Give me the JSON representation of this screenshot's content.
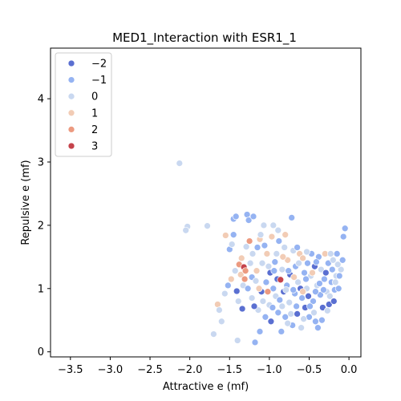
{
  "chart_data": {
    "type": "scatter",
    "title": "MED1_Interaction with ESR1_1",
    "xlabel": "Attractive e (mf)",
    "ylabel": "Repulsive e (mf)",
    "xlim": [
      -3.75,
      0.15
    ],
    "ylim": [
      -0.08,
      4.8
    ],
    "xticks": [
      -3.5,
      -3.0,
      -2.5,
      -2.0,
      -1.5,
      -1.0,
      -0.5,
      0.0
    ],
    "xtick_labels": [
      "−3.5",
      "−3.0",
      "−2.5",
      "−2.0",
      "−1.5",
      "−1.0",
      "−0.5",
      "0.0"
    ],
    "yticks": [
      0,
      1,
      2,
      3,
      4
    ],
    "ytick_labels": [
      "0",
      "1",
      "2",
      "3",
      "4"
    ],
    "grid": false,
    "legend_position": "top-left",
    "hue_colors": {
      "-2": "#5a6fd1",
      "-1": "#95b3f2",
      "0": "#c9d8f0",
      "1": "#f2ccb5",
      "2": "#ec9a80",
      "3": "#c5434b"
    },
    "legend": [
      {
        "label": "−2",
        "value": -2
      },
      {
        "label": "−1",
        "value": -1
      },
      {
        "label": "0",
        "value": 0
      },
      {
        "label": "1",
        "value": 1
      },
      {
        "label": "2",
        "value": 2
      },
      {
        "label": "3",
        "value": 3
      }
    ],
    "points": [
      {
        "x": -2.13,
        "y": 2.98,
        "hue": 0
      },
      {
        "x": -2.03,
        "y": 1.98,
        "hue": 0
      },
      {
        "x": -2.05,
        "y": 1.92,
        "hue": 0
      },
      {
        "x": -1.78,
        "y": 1.99,
        "hue": 0
      },
      {
        "x": -1.7,
        "y": 0.28,
        "hue": 0
      },
      {
        "x": -1.65,
        "y": 0.75,
        "hue": 1
      },
      {
        "x": -1.6,
        "y": 0.48,
        "hue": 0
      },
      {
        "x": -1.63,
        "y": 0.66,
        "hue": 0
      },
      {
        "x": -1.55,
        "y": 1.84,
        "hue": 1
      },
      {
        "x": -1.5,
        "y": 1.62,
        "hue": -1
      },
      {
        "x": -1.47,
        "y": 1.7,
        "hue": 0
      },
      {
        "x": -1.45,
        "y": 2.1,
        "hue": -1
      },
      {
        "x": -1.42,
        "y": 2.14,
        "hue": -1
      },
      {
        "x": -1.45,
        "y": 1.85,
        "hue": -1
      },
      {
        "x": -1.4,
        "y": 0.18,
        "hue": 0
      },
      {
        "x": -1.41,
        "y": 0.96,
        "hue": -2
      },
      {
        "x": -1.38,
        "y": 1.38,
        "hue": 2
      },
      {
        "x": -1.36,
        "y": 1.22,
        "hue": 1
      },
      {
        "x": -1.33,
        "y": 1.05,
        "hue": 0
      },
      {
        "x": -1.32,
        "y": 1.34,
        "hue": 3
      },
      {
        "x": -1.3,
        "y": 1.28,
        "hue": 2
      },
      {
        "x": -1.29,
        "y": 1.66,
        "hue": 0
      },
      {
        "x": -1.28,
        "y": 2.17,
        "hue": -1
      },
      {
        "x": -1.26,
        "y": 2.08,
        "hue": -1
      },
      {
        "x": -1.25,
        "y": 1.75,
        "hue": 2
      },
      {
        "x": -1.22,
        "y": 1.18,
        "hue": -1
      },
      {
        "x": -1.22,
        "y": 0.85,
        "hue": 0
      },
      {
        "x": -1.2,
        "y": 2.14,
        "hue": -1
      },
      {
        "x": -1.18,
        "y": 0.15,
        "hue": -1
      },
      {
        "x": -1.17,
        "y": 1.12,
        "hue": 0
      },
      {
        "x": -1.15,
        "y": 1.65,
        "hue": -1
      },
      {
        "x": -1.14,
        "y": 0.66,
        "hue": 0
      },
      {
        "x": -1.12,
        "y": 0.32,
        "hue": -1
      },
      {
        "x": -1.12,
        "y": 1.78,
        "hue": 1
      },
      {
        "x": -1.1,
        "y": 0.95,
        "hue": -2
      },
      {
        "x": -1.09,
        "y": 1.4,
        "hue": 0
      },
      {
        "x": -1.07,
        "y": 2.0,
        "hue": 0
      },
      {
        "x": -1.05,
        "y": 0.55,
        "hue": -1
      },
      {
        "x": -1.04,
        "y": 1.1,
        "hue": -1
      },
      {
        "x": -1.03,
        "y": 1.55,
        "hue": 1
      },
      {
        "x": -1.0,
        "y": 0.74,
        "hue": 0
      },
      {
        "x": -0.99,
        "y": 1.25,
        "hue": -2
      },
      {
        "x": -0.98,
        "y": 0.48,
        "hue": -2
      },
      {
        "x": -0.97,
        "y": 1.82,
        "hue": 1
      },
      {
        "x": -0.95,
        "y": 1.0,
        "hue": -1
      },
      {
        "x": -0.95,
        "y": 2.0,
        "hue": 0
      },
      {
        "x": -0.93,
        "y": 1.42,
        "hue": -1
      },
      {
        "x": -0.92,
        "y": 0.88,
        "hue": 0
      },
      {
        "x": -0.9,
        "y": 1.15,
        "hue": -2
      },
      {
        "x": -0.89,
        "y": 0.62,
        "hue": -1
      },
      {
        "x": -0.88,
        "y": 1.75,
        "hue": -1
      },
      {
        "x": -0.86,
        "y": 1.14,
        "hue": 3
      },
      {
        "x": -0.85,
        "y": 0.32,
        "hue": -1
      },
      {
        "x": -0.84,
        "y": 1.3,
        "hue": 0
      },
      {
        "x": -0.82,
        "y": 0.95,
        "hue": -2
      },
      {
        "x": -0.81,
        "y": 1.65,
        "hue": 0
      },
      {
        "x": -0.8,
        "y": 0.55,
        "hue": -1
      },
      {
        "x": -0.78,
        "y": 1.05,
        "hue": -1
      },
      {
        "x": -0.77,
        "y": 1.45,
        "hue": 1
      },
      {
        "x": -0.75,
        "y": 0.78,
        "hue": 0
      },
      {
        "x": -0.74,
        "y": 1.22,
        "hue": -2
      },
      {
        "x": -0.72,
        "y": 2.12,
        "hue": -1
      },
      {
        "x": -0.71,
        "y": 0.42,
        "hue": -1
      },
      {
        "x": -0.7,
        "y": 1.6,
        "hue": 0
      },
      {
        "x": -0.68,
        "y": 0.92,
        "hue": -1
      },
      {
        "x": -0.67,
        "y": 1.35,
        "hue": -1
      },
      {
        "x": -0.65,
        "y": 0.6,
        "hue": -2
      },
      {
        "x": -0.64,
        "y": 1.1,
        "hue": 0
      },
      {
        "x": -0.62,
        "y": 1.55,
        "hue": 1
      },
      {
        "x": -0.6,
        "y": 0.38,
        "hue": 0
      },
      {
        "x": -0.59,
        "y": 0.85,
        "hue": -1
      },
      {
        "x": -0.58,
        "y": 1.48,
        "hue": 1
      },
      {
        "x": -0.56,
        "y": 1.25,
        "hue": -1
      },
      {
        "x": -0.55,
        "y": 0.7,
        "hue": -2
      },
      {
        "x": -0.53,
        "y": 1.0,
        "hue": 0
      },
      {
        "x": -0.52,
        "y": 1.4,
        "hue": -1
      },
      {
        "x": -0.5,
        "y": 0.55,
        "hue": -1
      },
      {
        "x": -0.48,
        "y": 1.2,
        "hue": 0
      },
      {
        "x": -0.47,
        "y": 1.55,
        "hue": -1
      },
      {
        "x": -0.45,
        "y": 0.8,
        "hue": -1
      },
      {
        "x": -0.43,
        "y": 1.35,
        "hue": -2
      },
      {
        "x": -0.42,
        "y": 0.48,
        "hue": -1
      },
      {
        "x": -0.4,
        "y": 1.05,
        "hue": 0
      },
      {
        "x": -0.38,
        "y": 1.5,
        "hue": -1
      },
      {
        "x": -0.36,
        "y": 0.9,
        "hue": -1
      },
      {
        "x": -0.35,
        "y": 1.3,
        "hue": 0
      },
      {
        "x": -0.33,
        "y": 0.7,
        "hue": -2
      },
      {
        "x": -0.31,
        "y": 1.15,
        "hue": -1
      },
      {
        "x": -0.3,
        "y": 1.55,
        "hue": 1
      },
      {
        "x": -0.28,
        "y": 0.95,
        "hue": 0
      },
      {
        "x": -0.26,
        "y": 1.4,
        "hue": -1
      },
      {
        "x": -0.25,
        "y": 0.75,
        "hue": -2
      },
      {
        "x": -0.22,
        "y": 1.1,
        "hue": -1
      },
      {
        "x": -0.2,
        "y": 1.45,
        "hue": 0
      },
      {
        "x": -0.18,
        "y": 0.98,
        "hue": -1
      },
      {
        "x": -0.16,
        "y": 1.2,
        "hue": 0
      },
      {
        "x": -0.15,
        "y": 1.55,
        "hue": -1
      },
      {
        "x": -0.13,
        "y": 1.0,
        "hue": -1
      },
      {
        "x": -0.1,
        "y": 1.3,
        "hue": 0
      },
      {
        "x": -0.08,
        "y": 1.45,
        "hue": -1
      },
      {
        "x": -0.07,
        "y": 1.82,
        "hue": -1
      },
      {
        "x": -0.05,
        "y": 1.95,
        "hue": -1
      },
      {
        "x": -1.48,
        "y": 1.15,
        "hue": 1
      },
      {
        "x": -1.43,
        "y": 1.28,
        "hue": 0
      },
      {
        "x": -1.35,
        "y": 1.48,
        "hue": 1
      },
      {
        "x": -1.27,
        "y": 1.0,
        "hue": -1
      },
      {
        "x": -1.24,
        "y": 1.4,
        "hue": 0
      },
      {
        "x": -1.19,
        "y": 0.72,
        "hue": -2
      },
      {
        "x": -1.16,
        "y": 1.28,
        "hue": 1
      },
      {
        "x": -1.08,
        "y": 0.8,
        "hue": 0
      },
      {
        "x": -1.06,
        "y": 1.68,
        "hue": -1
      },
      {
        "x": -1.01,
        "y": 1.35,
        "hue": 0
      },
      {
        "x": -0.96,
        "y": 0.7,
        "hue": -1
      },
      {
        "x": -0.91,
        "y": 1.55,
        "hue": 0
      },
      {
        "x": -0.87,
        "y": 0.82,
        "hue": -1
      },
      {
        "x": -0.83,
        "y": 1.5,
        "hue": 1
      },
      {
        "x": -0.79,
        "y": 0.98,
        "hue": 0
      },
      {
        "x": -0.76,
        "y": 1.28,
        "hue": -1
      },
      {
        "x": -0.73,
        "y": 0.6,
        "hue": 0
      },
      {
        "x": -0.69,
        "y": 1.18,
        "hue": 1
      },
      {
        "x": -0.66,
        "y": 0.72,
        "hue": -1
      },
      {
        "x": -0.63,
        "y": 1.4,
        "hue": 0
      },
      {
        "x": -0.61,
        "y": 1.0,
        "hue": -2
      },
      {
        "x": -0.57,
        "y": 0.52,
        "hue": 0
      },
      {
        "x": -0.54,
        "y": 1.15,
        "hue": -1
      },
      {
        "x": -0.51,
        "y": 0.88,
        "hue": -2
      },
      {
        "x": -0.46,
        "y": 1.25,
        "hue": 1
      },
      {
        "x": -0.44,
        "y": 0.62,
        "hue": 0
      },
      {
        "x": -0.41,
        "y": 1.42,
        "hue": -1
      },
      {
        "x": -0.37,
        "y": 1.08,
        "hue": -1
      },
      {
        "x": -0.34,
        "y": 0.5,
        "hue": -1
      },
      {
        "x": -0.29,
        "y": 1.25,
        "hue": -2
      },
      {
        "x": -0.24,
        "y": 0.88,
        "hue": 0
      },
      {
        "x": -0.21,
        "y": 1.3,
        "hue": -1
      },
      {
        "x": -0.17,
        "y": 1.1,
        "hue": 0
      },
      {
        "x": -0.12,
        "y": 1.2,
        "hue": -1
      },
      {
        "x": -1.56,
        "y": 0.92,
        "hue": 0
      },
      {
        "x": -1.52,
        "y": 1.05,
        "hue": -1
      },
      {
        "x": -1.39,
        "y": 0.8,
        "hue": 0
      },
      {
        "x": -1.34,
        "y": 0.68,
        "hue": -2
      },
      {
        "x": -1.31,
        "y": 1.15,
        "hue": 2
      },
      {
        "x": -1.21,
        "y": 1.55,
        "hue": 0
      },
      {
        "x": -1.13,
        "y": 1.0,
        "hue": 1
      },
      {
        "x": -1.11,
        "y": 1.85,
        "hue": 0
      },
      {
        "x": -1.02,
        "y": 0.95,
        "hue": 2
      },
      {
        "x": -0.94,
        "y": 1.28,
        "hue": -1
      },
      {
        "x": -0.89,
        "y": 1.92,
        "hue": 0
      },
      {
        "x": -0.84,
        "y": 0.72,
        "hue": 0
      },
      {
        "x": -0.8,
        "y": 1.85,
        "hue": 1
      },
      {
        "x": -0.77,
        "y": 0.45,
        "hue": 0
      },
      {
        "x": -0.7,
        "y": 0.98,
        "hue": -1
      },
      {
        "x": -0.65,
        "y": 1.65,
        "hue": -1
      },
      {
        "x": -0.58,
        "y": 0.95,
        "hue": 1
      },
      {
        "x": -0.53,
        "y": 1.58,
        "hue": 0
      },
      {
        "x": -0.49,
        "y": 0.72,
        "hue": -1
      },
      {
        "x": -0.42,
        "y": 0.95,
        "hue": -1
      },
      {
        "x": -0.39,
        "y": 0.38,
        "hue": -1
      },
      {
        "x": -0.32,
        "y": 0.98,
        "hue": -1
      },
      {
        "x": -0.27,
        "y": 0.65,
        "hue": 0
      },
      {
        "x": -0.23,
        "y": 1.55,
        "hue": 0
      },
      {
        "x": -0.19,
        "y": 0.8,
        "hue": -2
      },
      {
        "x": -0.14,
        "y": 1.38,
        "hue": 0
      }
    ]
  }
}
